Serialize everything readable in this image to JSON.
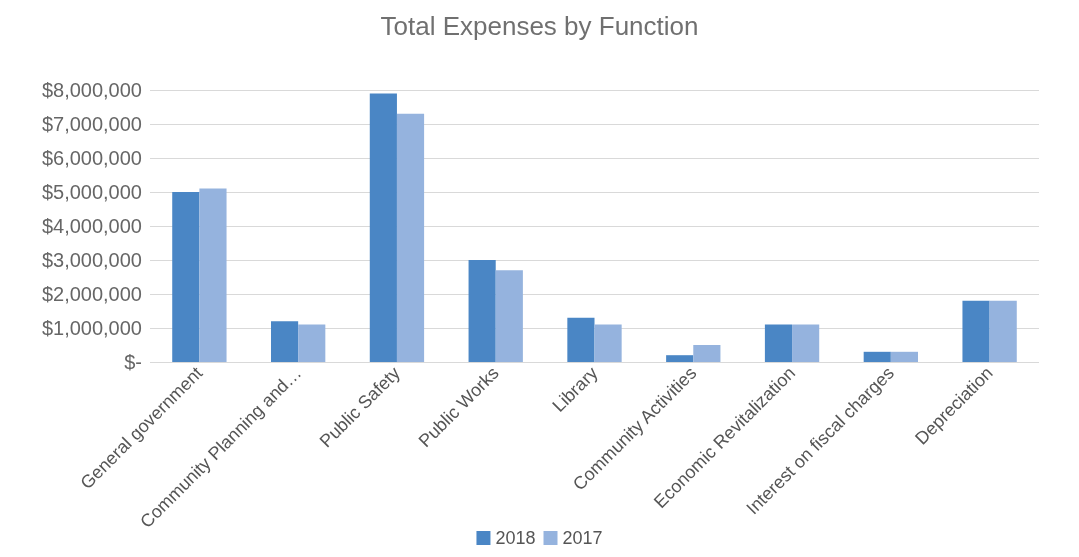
{
  "chart_data": {
    "type": "bar",
    "title": "Total Expenses by Function",
    "categories": [
      "General government",
      "Community Planning and…",
      "Public Safety",
      "Public Works",
      "Library",
      "Community Activities",
      "Economic Revitalization",
      "Interest on fiscal charges",
      "Depreciation"
    ],
    "series": [
      {
        "name": "2018",
        "color": "#4a86c5",
        "values": [
          5000000,
          1200000,
          7900000,
          3000000,
          1300000,
          200000,
          1100000,
          300000,
          1800000
        ]
      },
      {
        "name": "2017",
        "color": "#95b3de",
        "values": [
          5100000,
          1100000,
          7300000,
          2700000,
          1100000,
          500000,
          1100000,
          300000,
          1800000
        ]
      }
    ],
    "ylim": [
      0,
      8000000
    ],
    "yticks": [
      {
        "value": 0,
        "label": "$-"
      },
      {
        "value": 1000000,
        "label": "$1,000,000"
      },
      {
        "value": 2000000,
        "label": "$2,000,000"
      },
      {
        "value": 3000000,
        "label": "$3,000,000"
      },
      {
        "value": 4000000,
        "label": "$4,000,000"
      },
      {
        "value": 5000000,
        "label": "$5,000,000"
      },
      {
        "value": 6000000,
        "label": "$6,000,000"
      },
      {
        "value": 7000000,
        "label": "$7,000,000"
      },
      {
        "value": 8000000,
        "label": "$8,000,000"
      }
    ],
    "grid": "y",
    "legend": "bottom"
  }
}
